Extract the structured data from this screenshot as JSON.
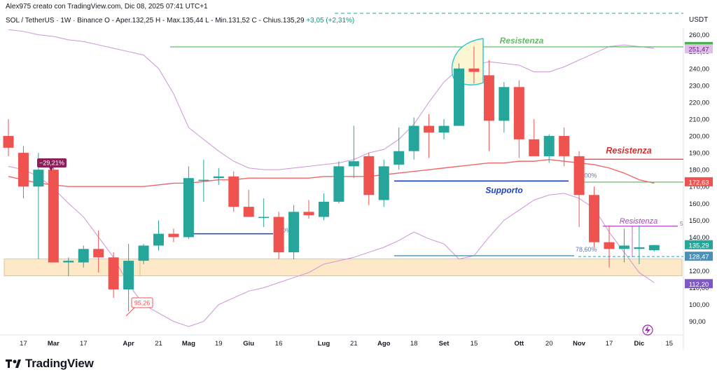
{
  "header": {
    "credit": "Alex975 creato con TradingView.com, Dic 08, 2025 07:41 UTC+1"
  },
  "symbol": {
    "name": "SOL / TetherUS · 1W · Binance",
    "ohlc": "O - Aper.132,25  H - Max.135,44  L - Min.131,52  C - Chius.135,29",
    "change": "+3,05 (+2,31%)"
  },
  "axis": {
    "currency": "USDT"
  },
  "footer": {
    "brand": "TradingView"
  },
  "colors": {
    "up": "#26a69a",
    "down": "#ef5350",
    "bollinger": "#ce93d8",
    "ma": "#f06767",
    "resistance_green": "#66bb6a",
    "resistance_red": "#e53935",
    "support_blue": "#1e40c8",
    "zone_fill": "#fde8c8"
  },
  "chart_data": {
    "type": "candlestick",
    "ylim": [
      82,
      264
    ],
    "y_ticks": [
      "260,00",
      "250,00",
      "240,00",
      "230,00",
      "220,00",
      "210,00",
      "200,00",
      "190,00",
      "180,00",
      "170,00",
      "160,00",
      "150,00",
      "140,00",
      "130,00",
      "120,00",
      "110,00",
      "100,00",
      "90,00"
    ],
    "x_ticks": [
      {
        "i": 1,
        "label": "17"
      },
      {
        "i": 3,
        "label": "Mar"
      },
      {
        "i": 5,
        "label": "17"
      },
      {
        "i": 8,
        "label": "Apr"
      },
      {
        "i": 10,
        "label": "21"
      },
      {
        "i": 12,
        "label": "Mag"
      },
      {
        "i": 14,
        "label": "19"
      },
      {
        "i": 16,
        "label": "Giu"
      },
      {
        "i": 18,
        "label": "16"
      },
      {
        "i": 21,
        "label": "Lug"
      },
      {
        "i": 23,
        "label": "21"
      },
      {
        "i": 25,
        "label": "Ago"
      },
      {
        "i": 27,
        "label": "18"
      },
      {
        "i": 29,
        "label": "Set"
      },
      {
        "i": 31,
        "label": "15"
      },
      {
        "i": 34,
        "label": "Ott"
      },
      {
        "i": 36,
        "label": "20"
      },
      {
        "i": 38,
        "label": "Nov"
      },
      {
        "i": 40,
        "label": "17"
      },
      {
        "i": 42,
        "label": "Dic"
      },
      {
        "i": 44,
        "label": "15"
      }
    ],
    "candles": [
      {
        "o": 200,
        "h": 210,
        "l": 188,
        "c": 193
      },
      {
        "o": 190,
        "h": 194,
        "l": 163,
        "c": 170
      },
      {
        "o": 170,
        "h": 190,
        "l": 127,
        "c": 180
      },
      {
        "o": 180,
        "h": 182,
        "l": 125,
        "c": 125
      },
      {
        "o": 125,
        "h": 128,
        "l": 117,
        "c": 126
      },
      {
        "o": 125,
        "h": 135,
        "l": 122,
        "c": 133
      },
      {
        "o": 133,
        "h": 144,
        "l": 119,
        "c": 128
      },
      {
        "o": 128,
        "h": 131,
        "l": 104,
        "c": 109
      },
      {
        "o": 109,
        "h": 136,
        "l": 96,
        "c": 126
      },
      {
        "o": 126,
        "h": 136,
        "l": 124,
        "c": 135
      },
      {
        "o": 135,
        "h": 150,
        "l": 132,
        "c": 142
      },
      {
        "o": 142,
        "h": 145,
        "l": 137,
        "c": 140
      },
      {
        "o": 140,
        "h": 182,
        "l": 139,
        "c": 175
      },
      {
        "o": 174,
        "h": 186,
        "l": 161,
        "c": 174
      },
      {
        "o": 175,
        "h": 181,
        "l": 171,
        "c": 176
      },
      {
        "o": 176,
        "h": 179,
        "l": 155,
        "c": 158
      },
      {
        "o": 158,
        "h": 168,
        "l": 153,
        "c": 152
      },
      {
        "o": 152,
        "h": 163,
        "l": 146,
        "c": 152
      },
      {
        "o": 152,
        "h": 155,
        "l": 127,
        "c": 131
      },
      {
        "o": 131,
        "h": 159,
        "l": 127,
        "c": 155
      },
      {
        "o": 155,
        "h": 162,
        "l": 151,
        "c": 153
      },
      {
        "o": 152,
        "h": 166,
        "l": 150,
        "c": 161
      },
      {
        "o": 161,
        "h": 185,
        "l": 160,
        "c": 182
      },
      {
        "o": 182,
        "h": 206,
        "l": 175,
        "c": 185
      },
      {
        "o": 188,
        "h": 190,
        "l": 159,
        "c": 165
      },
      {
        "o": 162,
        "h": 186,
        "l": 158,
        "c": 182
      },
      {
        "o": 183,
        "h": 205,
        "l": 180,
        "c": 191
      },
      {
        "o": 191,
        "h": 211,
        "l": 186,
        "c": 206
      },
      {
        "o": 206,
        "h": 213,
        "l": 187,
        "c": 202
      },
      {
        "o": 202,
        "h": 210,
        "l": 198,
        "c": 206
      },
      {
        "o": 206,
        "h": 243,
        "l": 206,
        "c": 240
      },
      {
        "o": 240,
        "h": 253,
        "l": 231,
        "c": 238
      },
      {
        "o": 236,
        "h": 245,
        "l": 191,
        "c": 209
      },
      {
        "o": 209,
        "h": 232,
        "l": 202,
        "c": 229
      },
      {
        "o": 229,
        "h": 233,
        "l": 187,
        "c": 198
      },
      {
        "o": 198,
        "h": 210,
        "l": 188,
        "c": 188
      },
      {
        "o": 188,
        "h": 201,
        "l": 184,
        "c": 200
      },
      {
        "o": 200,
        "h": 205,
        "l": 182,
        "c": 188
      },
      {
        "o": 188,
        "h": 191,
        "l": 146,
        "c": 165
      },
      {
        "o": 165,
        "h": 170,
        "l": 134,
        "c": 137
      },
      {
        "o": 137,
        "h": 147,
        "l": 122,
        "c": 133
      },
      {
        "o": 133,
        "h": 145,
        "l": 125,
        "c": 135
      },
      {
        "o": 133,
        "h": 147,
        "l": 124,
        "c": 134
      },
      {
        "o": 132.25,
        "h": 135.44,
        "l": 131.52,
        "c": 135.29
      }
    ],
    "ma": [
      176,
      174,
      172,
      171,
      170,
      170,
      170,
      170,
      170,
      170,
      171,
      172,
      172,
      173,
      174,
      174,
      175,
      175,
      175,
      175,
      175,
      176,
      176,
      176,
      176,
      177,
      178,
      179,
      180,
      181,
      182,
      183,
      184,
      184,
      185,
      185,
      186,
      185,
      184,
      183,
      181,
      178,
      174,
      172
    ],
    "bollinger_upper": [
      263,
      262,
      260,
      259,
      257,
      256,
      254,
      252,
      250,
      248,
      240,
      225,
      205,
      198,
      191,
      185,
      181,
      180,
      180,
      181,
      182,
      183,
      184,
      186,
      190,
      192,
      198,
      207,
      220,
      232,
      240,
      242,
      244,
      243,
      242,
      238,
      238,
      241,
      245,
      249,
      253,
      254,
      253,
      252
    ],
    "bollinger_lower": [
      182,
      180,
      176,
      169,
      160,
      152,
      140,
      128,
      112,
      100,
      95,
      90,
      87,
      90,
      100,
      104,
      108,
      110,
      113,
      116,
      119,
      124,
      126,
      128,
      131,
      134,
      138,
      143,
      139,
      136,
      127,
      129,
      140,
      150,
      156,
      162,
      165,
      166,
      163,
      157,
      143,
      131,
      119,
      113
    ],
    "price_labels": [
      {
        "value": 252.84,
        "text": "252,84",
        "bg": "#4caf50",
        "fg": "#ffffff"
      },
      {
        "value": 251.47,
        "text": "251,47",
        "bg": "#e1bee7",
        "fg": "#6a1b9a"
      },
      {
        "value": 172.63,
        "text": "172,63",
        "bg": "#ef5350",
        "fg": "#ffffff"
      },
      {
        "value": 135.29,
        "text": "135,29",
        "bg": "#26a69a",
        "fg": "#ffffff"
      },
      {
        "value": 128.47,
        "text": "128,47",
        "bg": "#4a90b8",
        "fg": "#ffffff"
      },
      {
        "value": 112.2,
        "text": "112,20",
        "bg": "#7e57c2",
        "fg": "#ffffff"
      }
    ],
    "annotations": {
      "resistance_top": {
        "text": "Resistenza",
        "value": 252.84
      },
      "resistance_mid": {
        "text": "Resistenza",
        "value": 186.2
      },
      "support": {
        "text": "Supporto",
        "value": 173.3
      },
      "resistance_low": {
        "text": "Resistenza",
        "value": 146.5
      },
      "fib_50": "50,00%",
      "fib_786": "78,60%",
      "fib_50_left": "50%",
      "pct_badge": "−29,21%",
      "low_label": "95,26",
      "small_5": "5"
    },
    "zone": {
      "top": 127,
      "bottom": 117
    }
  }
}
